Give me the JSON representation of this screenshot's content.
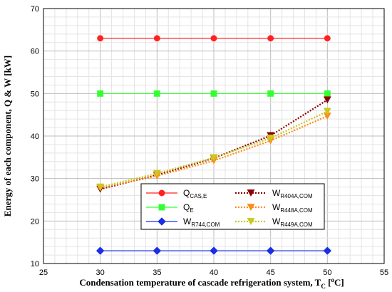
{
  "chart_data": {
    "type": "line",
    "title": "",
    "xlabel_prefix": "Condensation temperature of cascade refrigeration system, T",
    "xlabel_sub": "C",
    "xlabel_unit_open": " [",
    "xlabel_unit_sup": "o",
    "xlabel_unit_close": "C]",
    "ylabel": "Energy of each  component, Q & W [kW]",
    "xlim": [
      25,
      55
    ],
    "ylim": [
      10,
      70
    ],
    "xticks": [
      25,
      30,
      35,
      40,
      45,
      50,
      55
    ],
    "yticks": [
      10,
      20,
      30,
      40,
      50,
      60,
      70
    ],
    "grid": true,
    "legend_position": "bottom-center",
    "x": [
      30,
      35,
      40,
      45,
      50
    ],
    "series": [
      {
        "key": "q_cas_e",
        "label_main": "Q",
        "label_sub": "CAS,E",
        "values": [
          63,
          63,
          63,
          63,
          63
        ],
        "color": "#ff2020",
        "marker": "circle",
        "style": "solid"
      },
      {
        "key": "q_e",
        "label_main": "Q",
        "label_sub": "E",
        "values": [
          50,
          50,
          50,
          50,
          50
        ],
        "color": "#33ff33",
        "marker": "square",
        "style": "solid"
      },
      {
        "key": "w_r744",
        "label_main": "W",
        "label_sub": "R744,COM",
        "values": [
          13,
          13,
          13,
          13,
          13
        ],
        "color": "#1a2ee6",
        "marker": "diamond",
        "style": "solid"
      },
      {
        "key": "w_r404a",
        "label_main": "W",
        "label_sub": "R404A,COM",
        "values": [
          27.5,
          30.8,
          34.8,
          40.1,
          48.5
        ],
        "color": "#8b0000",
        "marker": "triangle-down",
        "style": "dotted"
      },
      {
        "key": "w_r448a",
        "label_main": "W",
        "label_sub": "R448A,COM",
        "values": [
          27.8,
          30.6,
          34.2,
          38.9,
          44.7
        ],
        "color": "#ff8c1a",
        "marker": "triangle-down",
        "style": "dotted"
      },
      {
        "key": "w_r449a",
        "label_main": "W",
        "label_sub": "R449A,COM",
        "values": [
          28.0,
          31.2,
          34.9,
          39.5,
          45.8
        ],
        "color": "#c8c81e",
        "marker": "triangle-down",
        "style": "dotted"
      }
    ]
  }
}
